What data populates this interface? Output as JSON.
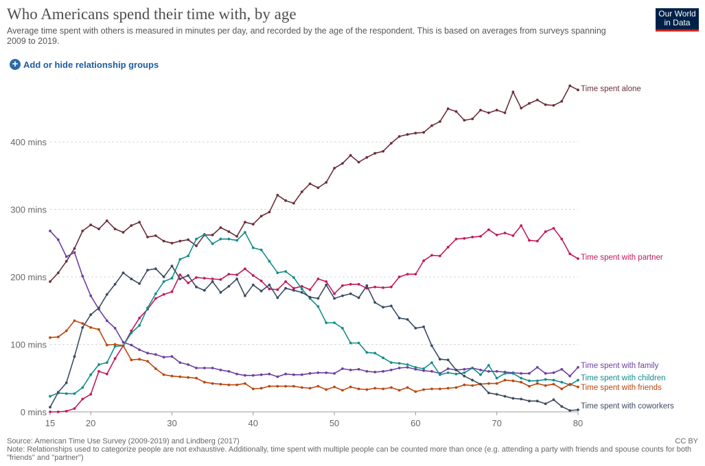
{
  "header": {
    "title": "Who Americans spend their time with, by age",
    "subtitle": "Average time spent with others is measured in minutes per day, and recorded by the age of the respondent. This is based on averages from surveys spanning 2009 to 2019.",
    "logo_line1": "Our World",
    "logo_line2": "in Data",
    "logo_color": "#002147",
    "logo_accent": "#ce261e"
  },
  "controls": {
    "add_hide_label": "Add or hide relationship groups",
    "plus_icon": "plus-circle-icon"
  },
  "footer": {
    "source": "Source: American Time Use Survey (2009-2019) and Lindberg (2017)",
    "note": "Note: Relationships used to categorize people are not exhaustive. Additionally, time spent with multiple people can be counted more than once (e.g. attending a party with friends and spouse counts for both \"friends\" and \"partner\")",
    "license": "CC BY"
  },
  "chart_data": {
    "type": "line",
    "title": "Who Americans spend their time with, by age",
    "xlabel": "",
    "ylabel": "",
    "xlim": [
      15,
      80
    ],
    "ylim": [
      0,
      500
    ],
    "x_ticks": [
      15,
      20,
      30,
      40,
      50,
      60,
      70,
      80
    ],
    "y_ticks": [
      0,
      100,
      200,
      300,
      400
    ],
    "y_tick_labels": [
      "0 mins",
      "100 mins",
      "200 mins",
      "300 mins",
      "400 mins"
    ],
    "grid": "horizontal-dashed",
    "legend": "line-end labels",
    "x": [
      15,
      16,
      17,
      18,
      19,
      20,
      21,
      22,
      23,
      24,
      25,
      26,
      27,
      28,
      29,
      30,
      31,
      32,
      33,
      34,
      35,
      36,
      37,
      38,
      39,
      40,
      41,
      42,
      43,
      44,
      45,
      46,
      47,
      48,
      49,
      50,
      51,
      52,
      53,
      54,
      55,
      56,
      57,
      58,
      59,
      60,
      61,
      62,
      63,
      64,
      65,
      66,
      67,
      68,
      69,
      70,
      71,
      72,
      73,
      74,
      75,
      76,
      77,
      78,
      79,
      80
    ],
    "series": [
      {
        "name": "Time spent alone",
        "color": "#6d2e3a",
        "values": [
          193,
          206,
          223,
          242,
          268,
          277,
          271,
          283,
          271,
          266,
          276,
          281,
          259,
          261,
          253,
          250,
          253,
          255,
          246,
          262,
          262,
          273,
          267,
          260,
          281,
          278,
          290,
          296,
          321,
          313,
          309,
          326,
          338,
          332,
          340,
          361,
          368,
          380,
          370,
          377,
          383,
          386,
          398,
          408,
          411,
          413,
          414,
          424,
          430,
          449,
          445,
          432,
          434,
          447,
          443,
          447,
          443,
          474,
          450,
          457,
          462,
          455,
          454,
          460,
          483,
          477
        ]
      },
      {
        "name": "Time spent with partner",
        "color": "#c2185b",
        "values": [
          0,
          0,
          1,
          5,
          19,
          26,
          60,
          56,
          79,
          98,
          120,
          139,
          152,
          168,
          174,
          178,
          203,
          191,
          199,
          198,
          197,
          196,
          204,
          203,
          212,
          202,
          194,
          182,
          181,
          193,
          183,
          186,
          181,
          197,
          193,
          175,
          187,
          189,
          189,
          183,
          185,
          184,
          185,
          200,
          204,
          204,
          224,
          232,
          231,
          244,
          256,
          257,
          259,
          260,
          270,
          262,
          265,
          261,
          276,
          254,
          253,
          267,
          272,
          256,
          234,
          227
        ]
      },
      {
        "name": "Time spent with family",
        "color": "#6b3fa0",
        "values": [
          268,
          255,
          230,
          236,
          201,
          172,
          152,
          135,
          124,
          103,
          99,
          92,
          87,
          85,
          81,
          82,
          73,
          70,
          65,
          65,
          65,
          62,
          60,
          56,
          54,
          54,
          55,
          56,
          52,
          56,
          55,
          55,
          57,
          58,
          58,
          57,
          64,
          62,
          63,
          60,
          59,
          60,
          62,
          65,
          66,
          63,
          61,
          60,
          57,
          64,
          62,
          63,
          65,
          62,
          60,
          60,
          59,
          58,
          57,
          57,
          66,
          57,
          58,
          63,
          53,
          66
        ]
      },
      {
        "name": "Time spent with children",
        "color": "#138d8a",
        "values": [
          23,
          28,
          27,
          27,
          36,
          55,
          70,
          73,
          97,
          98,
          117,
          128,
          154,
          175,
          193,
          198,
          226,
          231,
          256,
          263,
          249,
          256,
          256,
          254,
          266,
          243,
          240,
          223,
          206,
          208,
          199,
          182,
          168,
          156,
          132,
          132,
          124,
          102,
          102,
          88,
          87,
          80,
          73,
          72,
          70,
          66,
          64,
          73,
          55,
          58,
          56,
          58,
          65,
          55,
          69,
          50,
          57,
          57,
          50,
          46,
          46,
          48,
          47,
          44,
          40,
          47
        ]
      },
      {
        "name": "Time spent with friends",
        "color": "#b9470f",
        "values": [
          110,
          111,
          120,
          135,
          131,
          125,
          122,
          99,
          100,
          98,
          77,
          78,
          75,
          64,
          55,
          53,
          52,
          51,
          50,
          44,
          42,
          41,
          40,
          40,
          42,
          34,
          35,
          38,
          38,
          38,
          38,
          36,
          35,
          38,
          33,
          37,
          32,
          37,
          34,
          33,
          35,
          34,
          36,
          32,
          36,
          30,
          33,
          34,
          34,
          35,
          36,
          40,
          39,
          41,
          42,
          42,
          47,
          46,
          44,
          38,
          42,
          39,
          41,
          34,
          41,
          37
        ]
      },
      {
        "name": "Time spent with coworkers",
        "color": "#3a4a63",
        "values": [
          7,
          29,
          43,
          82,
          125,
          144,
          154,
          174,
          189,
          206,
          197,
          190,
          210,
          212,
          200,
          216,
          197,
          202,
          185,
          180,
          193,
          177,
          186,
          197,
          172,
          188,
          179,
          188,
          169,
          183,
          180,
          177,
          170,
          168,
          188,
          168,
          172,
          175,
          169,
          187,
          162,
          155,
          157,
          139,
          137,
          124,
          126,
          98,
          78,
          77,
          62,
          53,
          47,
          41,
          28,
          26,
          23,
          20,
          19,
          16,
          16,
          12,
          18,
          8,
          2,
          3
        ]
      }
    ]
  }
}
